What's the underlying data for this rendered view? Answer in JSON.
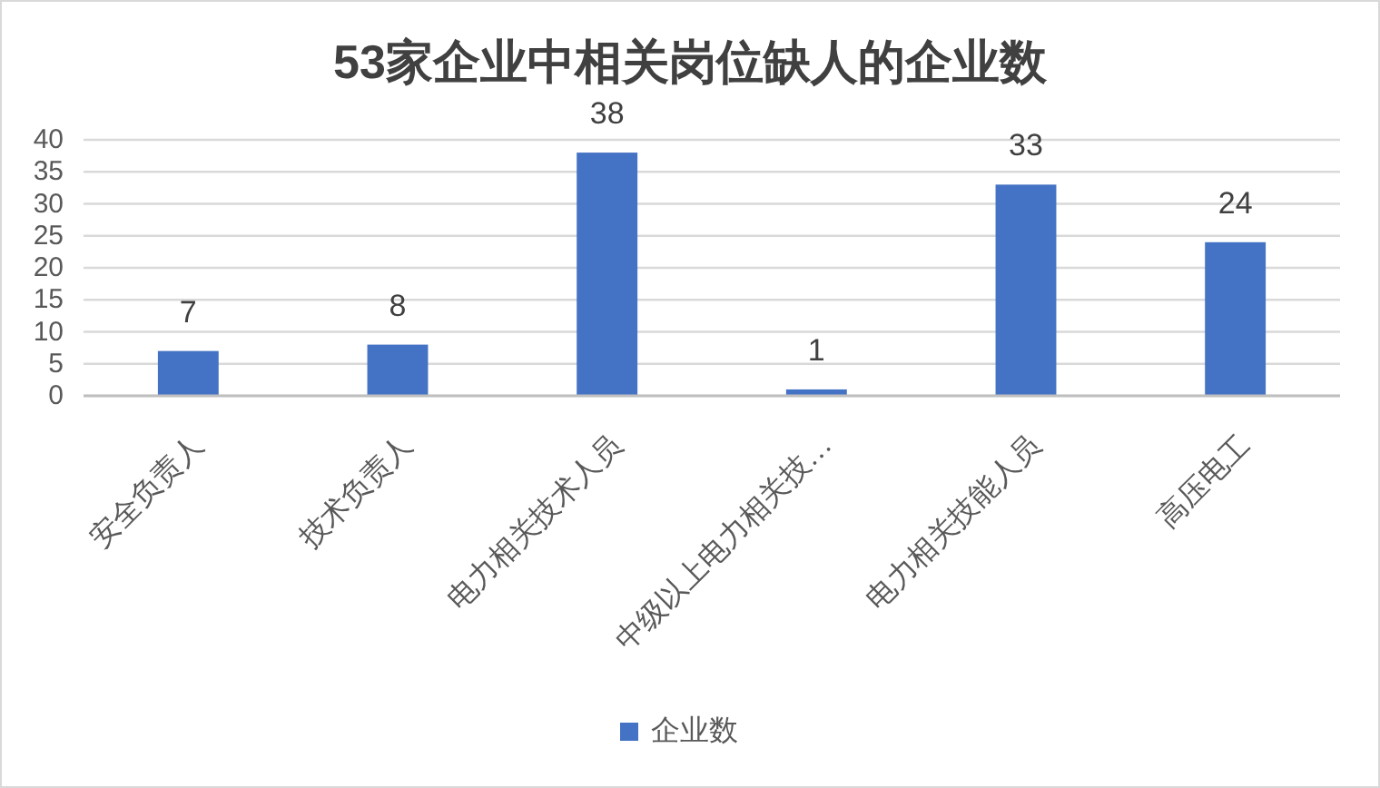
{
  "chart_data": {
    "type": "bar",
    "title": "53家企业中相关岗位缺人的企业数",
    "categories": [
      "安全负责人",
      "技术负责人",
      "电力相关技术人员",
      "中级以上电力相关技…",
      "电力相关技能人员",
      "高压电工"
    ],
    "series": [
      {
        "name": "企业数",
        "color": "#4472c4",
        "values": [
          7,
          8,
          38,
          1,
          33,
          24
        ]
      }
    ],
    "ylim": [
      0,
      40
    ],
    "yticks": [
      0,
      5,
      10,
      15,
      20,
      25,
      30,
      35,
      40
    ],
    "grid": "y",
    "legend": "bottom",
    "data_labels": true
  }
}
